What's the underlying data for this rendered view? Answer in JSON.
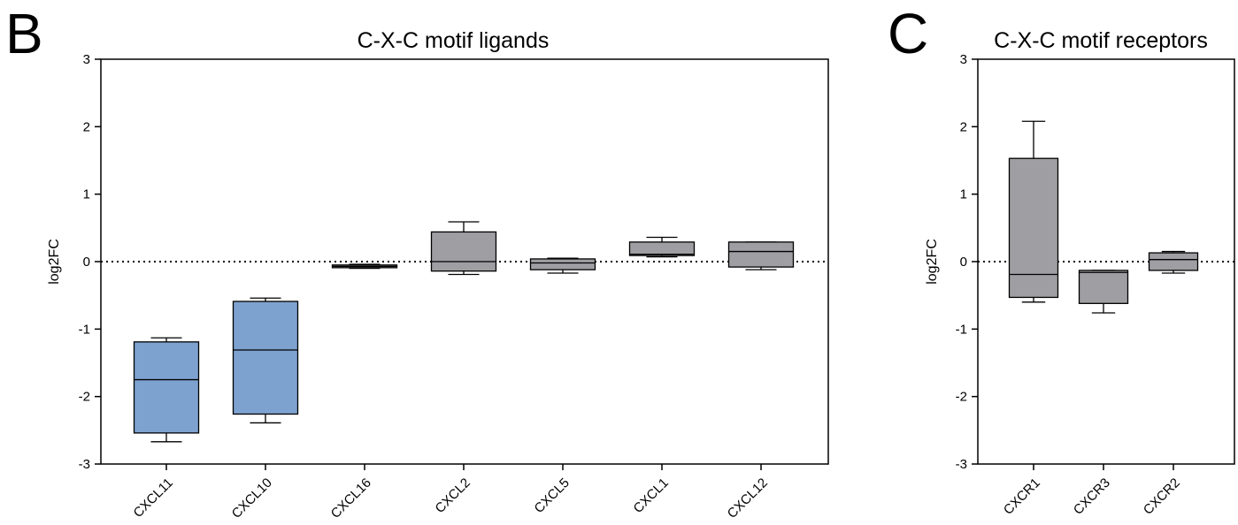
{
  "chart_data": [
    {
      "panel": "B",
      "type": "box",
      "title": "C-X-C motif ligands",
      "ylabel": "log2FC",
      "ylim": [
        -3,
        3
      ],
      "yticks": [
        3,
        2,
        1,
        0,
        -1,
        -2,
        -3
      ],
      "reference_line": 0,
      "categories": [
        "CXCL11",
        "CXCL10",
        "CXCL16",
        "CXCL2",
        "CXCL5",
        "CXCL1",
        "CXCL12"
      ],
      "boxes": [
        {
          "category": "CXCL11",
          "min": -2.67,
          "q1": -2.54,
          "median": -1.75,
          "q3": -1.19,
          "max": -1.13,
          "color": "#7ea2cf"
        },
        {
          "category": "CXCL10",
          "min": -2.39,
          "q1": -2.26,
          "median": -1.31,
          "q3": -0.59,
          "max": -0.54,
          "color": "#7ea2cf"
        },
        {
          "category": "CXCL16",
          "min": -0.1,
          "q1": -0.09,
          "median": -0.07,
          "q3": -0.05,
          "max": -0.04,
          "color": "#9e9ea3"
        },
        {
          "category": "CXCL2",
          "min": -0.19,
          "q1": -0.14,
          "median": 0.0,
          "q3": 0.44,
          "max": 0.59,
          "color": "#9e9ea3"
        },
        {
          "category": "CXCL5",
          "min": -0.17,
          "q1": -0.12,
          "median": -0.02,
          "q3": 0.04,
          "max": 0.05,
          "color": "#9e9ea3"
        },
        {
          "category": "CXCL1",
          "min": 0.07,
          "q1": 0.09,
          "median": 0.11,
          "q3": 0.29,
          "max": 0.36,
          "color": "#9e9ea3"
        },
        {
          "category": "CXCL12",
          "min": -0.12,
          "q1": -0.08,
          "median": 0.15,
          "q3": 0.29,
          "max": 0.29,
          "color": "#9e9ea3"
        }
      ]
    },
    {
      "panel": "C",
      "type": "box",
      "title": "C-X-C motif receptors",
      "ylabel": "log2FC",
      "ylim": [
        -3,
        3
      ],
      "yticks": [
        3,
        2,
        1,
        0,
        -1,
        -2,
        -3
      ],
      "reference_line": 0,
      "categories": [
        "CXCR1",
        "CXCR3",
        "CXCR2"
      ],
      "boxes": [
        {
          "category": "CXCR1",
          "min": -0.6,
          "q1": -0.53,
          "median": -0.19,
          "q3": 1.53,
          "max": 2.08,
          "color": "#9e9ea3"
        },
        {
          "category": "CXCR3",
          "min": -0.76,
          "q1": -0.62,
          "median": -0.16,
          "q3": -0.13,
          "max": -0.13,
          "color": "#9e9ea3"
        },
        {
          "category": "CXCR2",
          "min": -0.17,
          "q1": -0.13,
          "median": 0.03,
          "q3": 0.13,
          "max": 0.15,
          "color": "#9e9ea3"
        }
      ]
    }
  ]
}
